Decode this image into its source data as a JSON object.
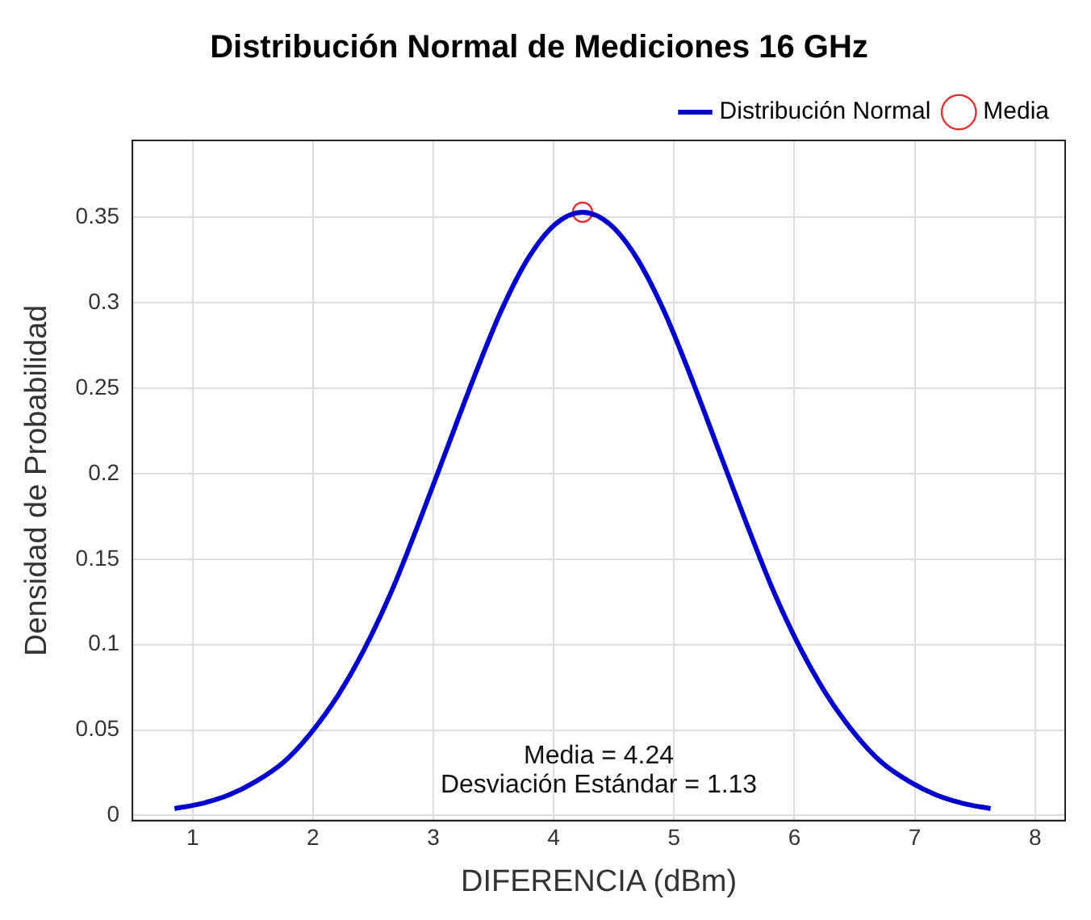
{
  "chart_data": {
    "type": "line",
    "title": "Distribución Normal de Mediciones 16 GHz",
    "xlabel": "DIFERENCIA (dBm)",
    "ylabel": "Densidad de Probabilidad",
    "xlim": [
      0.5,
      8.25
    ],
    "xticks": [
      1,
      2,
      3,
      4,
      5,
      6,
      7,
      8
    ],
    "ylim": [
      -0.003,
      0.395
    ],
    "yticks": [
      0,
      0.05,
      0.1,
      0.15,
      0.2,
      0.25,
      0.3,
      0.35
    ],
    "grid": true,
    "legend": "top right",
    "line_style": "solid",
    "annotations": [
      "Media = 4.24",
      "Desviación Estándar = 1.13"
    ],
    "series": [
      {
        "name": "Distribución Normal",
        "color": "#0000cc",
        "marker": "none",
        "x": [
          0.85,
          1.076,
          1.302,
          1.528,
          1.754,
          1.98,
          2.206,
          2.432,
          2.658,
          2.884,
          3.11,
          3.336,
          3.562,
          3.788,
          4.014,
          4.24,
          4.466,
          4.692,
          4.918,
          5.144,
          5.37,
          5.596,
          5.822,
          6.048,
          6.274,
          6.5,
          6.726,
          6.952,
          7.178,
          7.404,
          7.63
        ],
        "values": [
          0.004,
          0.007,
          0.012,
          0.02,
          0.031,
          0.048,
          0.07,
          0.098,
          0.132,
          0.172,
          0.214,
          0.256,
          0.295,
          0.326,
          0.346,
          0.353,
          0.346,
          0.326,
          0.295,
          0.256,
          0.214,
          0.172,
          0.132,
          0.098,
          0.07,
          0.048,
          0.031,
          0.02,
          0.012,
          0.007,
          0.004
        ]
      },
      {
        "name": "Media",
        "type": "scatter",
        "color": "#e03030",
        "marker": "circle",
        "x": [
          4.24
        ],
        "values": [
          0.353
        ]
      }
    ]
  }
}
